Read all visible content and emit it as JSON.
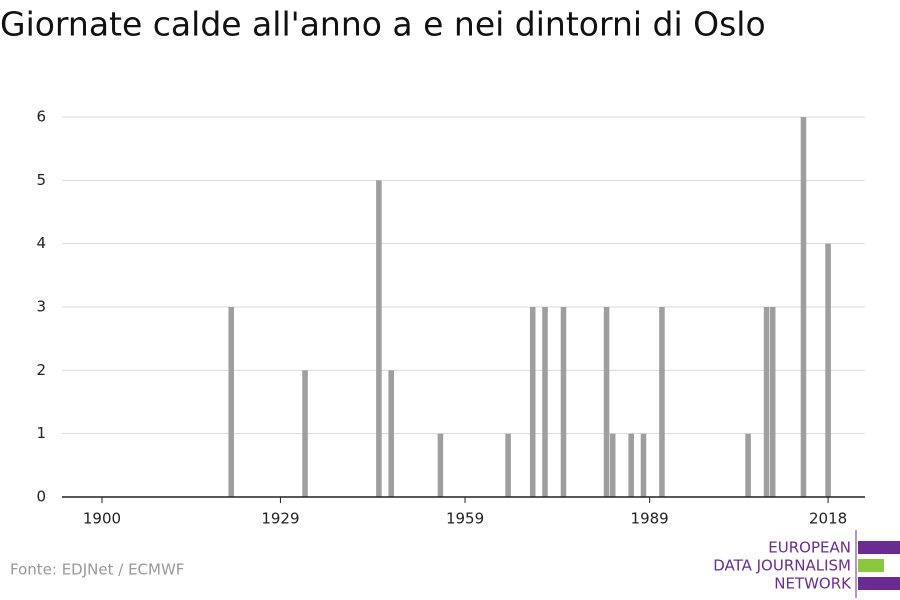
{
  "chart_data": {
    "type": "bar",
    "title": "Giornate calde all'anno a e nei dintorni di Oslo",
    "source": "Fonte: EDJNet / ECMWF",
    "logo": [
      "EUROPEAN",
      "DATA JOURNALISM",
      "NETWORK"
    ],
    "x": [
      1921,
      1933,
      1945,
      1947,
      1955,
      1966,
      1970,
      1972,
      1975,
      1982,
      1983,
      1986,
      1988,
      1991,
      2005,
      2008,
      2009,
      2014,
      2018
    ],
    "values": [
      3,
      2,
      5,
      2,
      1,
      1,
      3,
      3,
      3,
      3,
      1,
      1,
      1,
      3,
      1,
      3,
      3,
      6,
      4
    ],
    "color": "#9e9e9e",
    "xlim": [
      1893.5,
      2024
    ],
    "xticks": [
      1900,
      1929,
      1959,
      1989,
      2018
    ],
    "ylim": [
      0,
      6
    ],
    "yticks": [
      0,
      1,
      2,
      3,
      4,
      5,
      6
    ],
    "grid": true
  }
}
